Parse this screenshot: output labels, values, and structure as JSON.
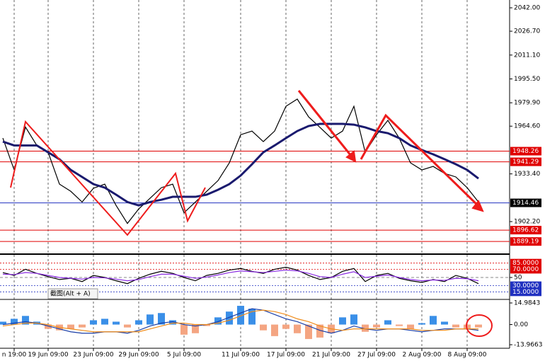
{
  "chart_data": [
    {
      "type": "line",
      "categories": [
        null,
        "n 19:00",
        null,
        null,
        "19 Jun 09:00",
        null,
        null,
        null,
        "23 Jun 09:00",
        null,
        null,
        null,
        "29 Jun 09:00",
        null,
        null,
        null,
        "5 Jul 09:00",
        null,
        null,
        null,
        null,
        "11 Jul 09:00",
        null,
        null,
        null,
        "17 Jul 09:00",
        null,
        null,
        null,
        "21 Jul 09:00",
        null,
        null,
        null,
        "27 Jul 09:00",
        null,
        null,
        null,
        "2 Aug 09:00",
        null,
        null,
        null,
        "8 Aug 09:00",
        null
      ],
      "series": [
        {
          "color": "#000000",
          "values": [
            1956.8,
            1936,
            1964,
            1952,
            1947.5,
            1926.7,
            1922,
            1915,
            1924,
            1926.7,
            1912.8,
            1901,
            1910.5,
            1917.5,
            1924.4,
            1926.7,
            1908,
            1915,
            1922,
            1929,
            1940.6,
            1959,
            1961.4,
            1954.5,
            1961.4,
            1977.6,
            1982.3,
            1970.7,
            1963.8,
            1956.8,
            1961.4,
            1977.6,
            1947.5,
            1959,
            1968.4,
            1956.8,
            1940.6,
            1936,
            1938.3,
            1933.7,
            1931.4,
            1924.4,
            1915
          ]
        },
        {
          "color": "#1a1a6e",
          "values": [
            1954.5,
            1952,
            1952,
            1952,
            1947.5,
            1943,
            1936,
            1931.4,
            1926.7,
            1924.4,
            1919.8,
            1915,
            1912.8,
            1915,
            1916.5,
            1918.4,
            1918.4,
            1918.4,
            1919.8,
            1923,
            1926.7,
            1932.3,
            1939.7,
            1947.5,
            1952,
            1956.8,
            1961.4,
            1964.7,
            1966.1,
            1966.1,
            1966.1,
            1965.6,
            1963.8,
            1961.4,
            1960,
            1956.8,
            1952,
            1949,
            1946.2,
            1943,
            1939.7,
            1936,
            1930.4
          ]
        }
      ],
      "ylim": [
        1881.4,
        2047.1
      ],
      "yticks": [
        {
          "value": 2042,
          "label": "2042.00"
        },
        {
          "value": 2026.7,
          "label": "2026.70"
        },
        {
          "value": 2011.1,
          "label": "2011.10"
        },
        {
          "value": 1995.5,
          "label": "1995.50"
        },
        {
          "value": 1979.9,
          "label": "1979.90"
        },
        {
          "value": 1964.6,
          "label": "1964.60"
        },
        {
          "value": 1933.4,
          "label": "1933.40"
        },
        {
          "value": 1902.2,
          "label": "1902.20"
        }
      ],
      "hlines": [
        {
          "value": 1948.26,
          "label": "1948.26",
          "color": "#e00000"
        },
        {
          "value": 1941.29,
          "label": "1941.29",
          "color": "#e00000"
        },
        {
          "value": 1914.46,
          "label": "1914.46",
          "color": "#2030c0"
        },
        {
          "value": 1896.62,
          "label": "1896.62",
          "color": "#e00000"
        },
        {
          "value": 1889.19,
          "label": "1889.19",
          "color": "#e00000"
        }
      ]
    },
    {
      "type": "line",
      "annotation": "截图(Alt + A)",
      "series": [
        {
          "color": "#000000",
          "values": [
            62,
            55,
            70,
            60,
            52,
            45,
            48,
            40,
            55,
            50,
            42,
            35,
            48,
            58,
            65,
            60,
            50,
            42,
            55,
            60,
            68,
            72,
            65,
            60,
            70,
            75,
            68,
            55,
            45,
            50,
            65,
            72,
            40,
            55,
            60,
            48,
            42,
            38,
            45,
            40,
            55,
            48,
            35
          ]
        },
        {
          "color": "#8a2be2",
          "values": [
            58,
            57,
            62,
            60,
            55,
            50,
            48,
            46,
            50,
            49,
            46,
            42,
            45,
            52,
            58,
            58,
            53,
            48,
            51,
            56,
            62,
            66,
            64,
            62,
            65,
            68,
            66,
            60,
            52,
            50,
            58,
            64,
            50,
            53,
            56,
            50,
            45,
            42,
            44,
            43,
            48,
            47,
            42
          ]
        }
      ],
      "ylim": [
        0,
        100
      ],
      "yticks": [
        50
      ],
      "levels": [
        {
          "value": 85,
          "label": "85.0000",
          "color": "#e00000"
        },
        {
          "value": 70,
          "label": "70.0000",
          "color": "#e00000"
        },
        {
          "value": 30,
          "label": "30.0000",
          "color": "#2030c0"
        },
        {
          "value": 15,
          "label": "15.0000",
          "color": "#2030c0"
        }
      ]
    },
    {
      "type": "bar",
      "values": [
        2,
        4,
        6,
        2,
        -3,
        -4,
        -3,
        -2,
        3,
        4,
        2,
        -2,
        3,
        7,
        8,
        3,
        -7,
        -6,
        -1,
        5,
        9,
        13,
        11,
        -4,
        -8,
        -3,
        -6,
        -10,
        -9,
        -6,
        5,
        7,
        -5,
        -2,
        3,
        -1,
        -3,
        1,
        6,
        2,
        -2,
        -3,
        -2
      ],
      "colors": {
        "positive": "#3a8fe8",
        "negative": "#f4a582"
      },
      "series": [
        {
          "color": "#1a3fa8",
          "values": [
            0,
            1,
            2,
            1,
            -1,
            -3,
            -5,
            -6,
            -6,
            -5,
            -5,
            -6,
            -4,
            -1,
            1,
            2,
            0,
            -1,
            0,
            2,
            5,
            8,
            11,
            10,
            7,
            4,
            2,
            -1,
            -4,
            -6,
            -4,
            -1,
            -3,
            -4,
            -3,
            -3,
            -4,
            -5,
            -4,
            -3,
            -3,
            -3,
            -4
          ]
        },
        {
          "color": "#f08c1a",
          "values": [
            -1,
            0,
            1,
            1,
            0,
            -2,
            -3,
            -4,
            -5,
            -5,
            -5,
            -5,
            -5,
            -3,
            -1,
            1,
            1,
            0,
            0,
            1,
            3,
            6,
            9,
            10,
            9,
            7,
            4,
            2,
            -1,
            -3,
            -4,
            -3,
            -3,
            -3,
            -3,
            -3,
            -3,
            -4,
            -4,
            -4,
            -3,
            -3,
            -3
          ]
        }
      ],
      "ylim": [
        -13.9663,
        14.9843
      ],
      "yticks": [
        {
          "value": 14.9843,
          "label": "14.9843"
        },
        {
          "value": 0,
          "label": "0.00"
        },
        {
          "value": -13.9663,
          "label": "-13.9663"
        }
      ]
    }
  ]
}
